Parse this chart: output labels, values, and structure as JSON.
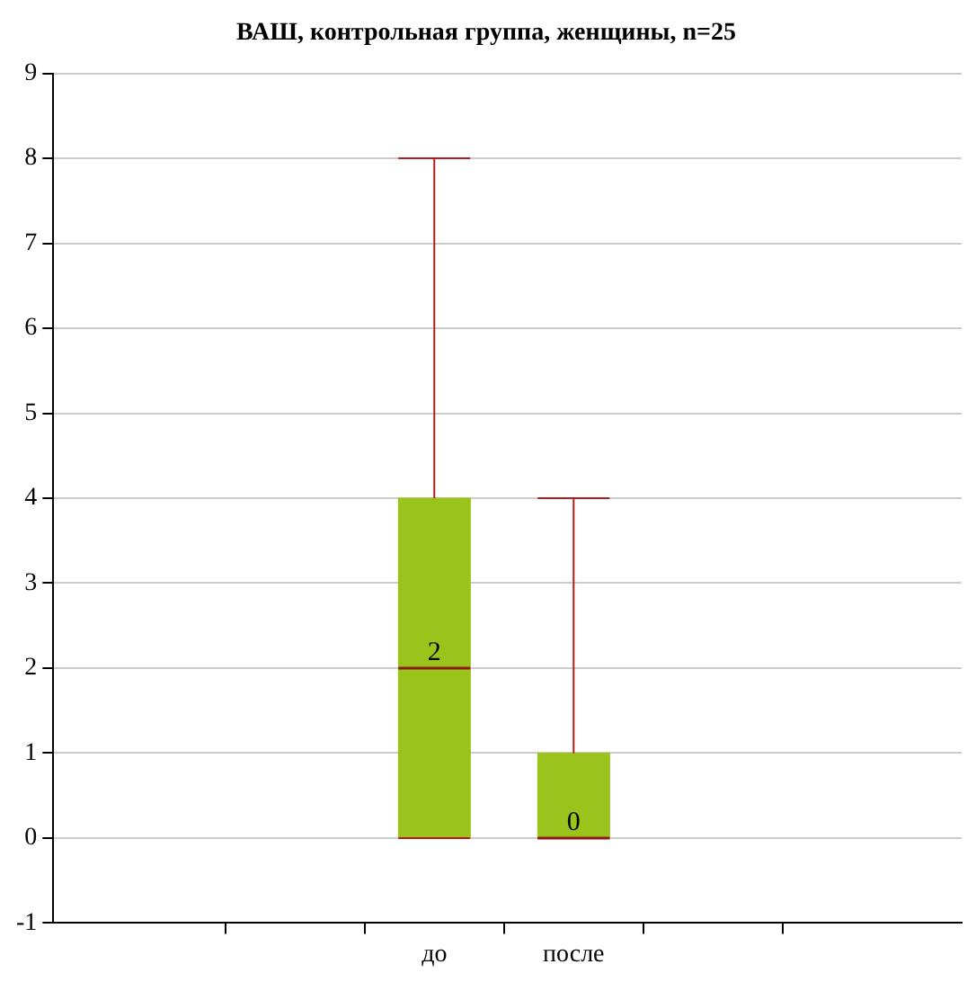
{
  "chart_data": {
    "type": "box",
    "title": "ВАШ, контрольная группа, женщины, n=25",
    "categories": [
      "до",
      "после"
    ],
    "boxes": [
      {
        "low": 0,
        "q1": 0,
        "median": 2,
        "q3": 4,
        "high": 8
      },
      {
        "low": 0,
        "q1": 0,
        "median": 0,
        "q3": 1,
        "high": 4
      }
    ],
    "color": "#9ac31c",
    "ylim": [
      -1,
      9
    ],
    "yticks": [
      -1,
      0,
      1,
      2,
      3,
      4,
      5,
      6,
      7,
      8,
      9
    ],
    "grid": "y",
    "value_labels": [
      "2",
      "0"
    ]
  }
}
